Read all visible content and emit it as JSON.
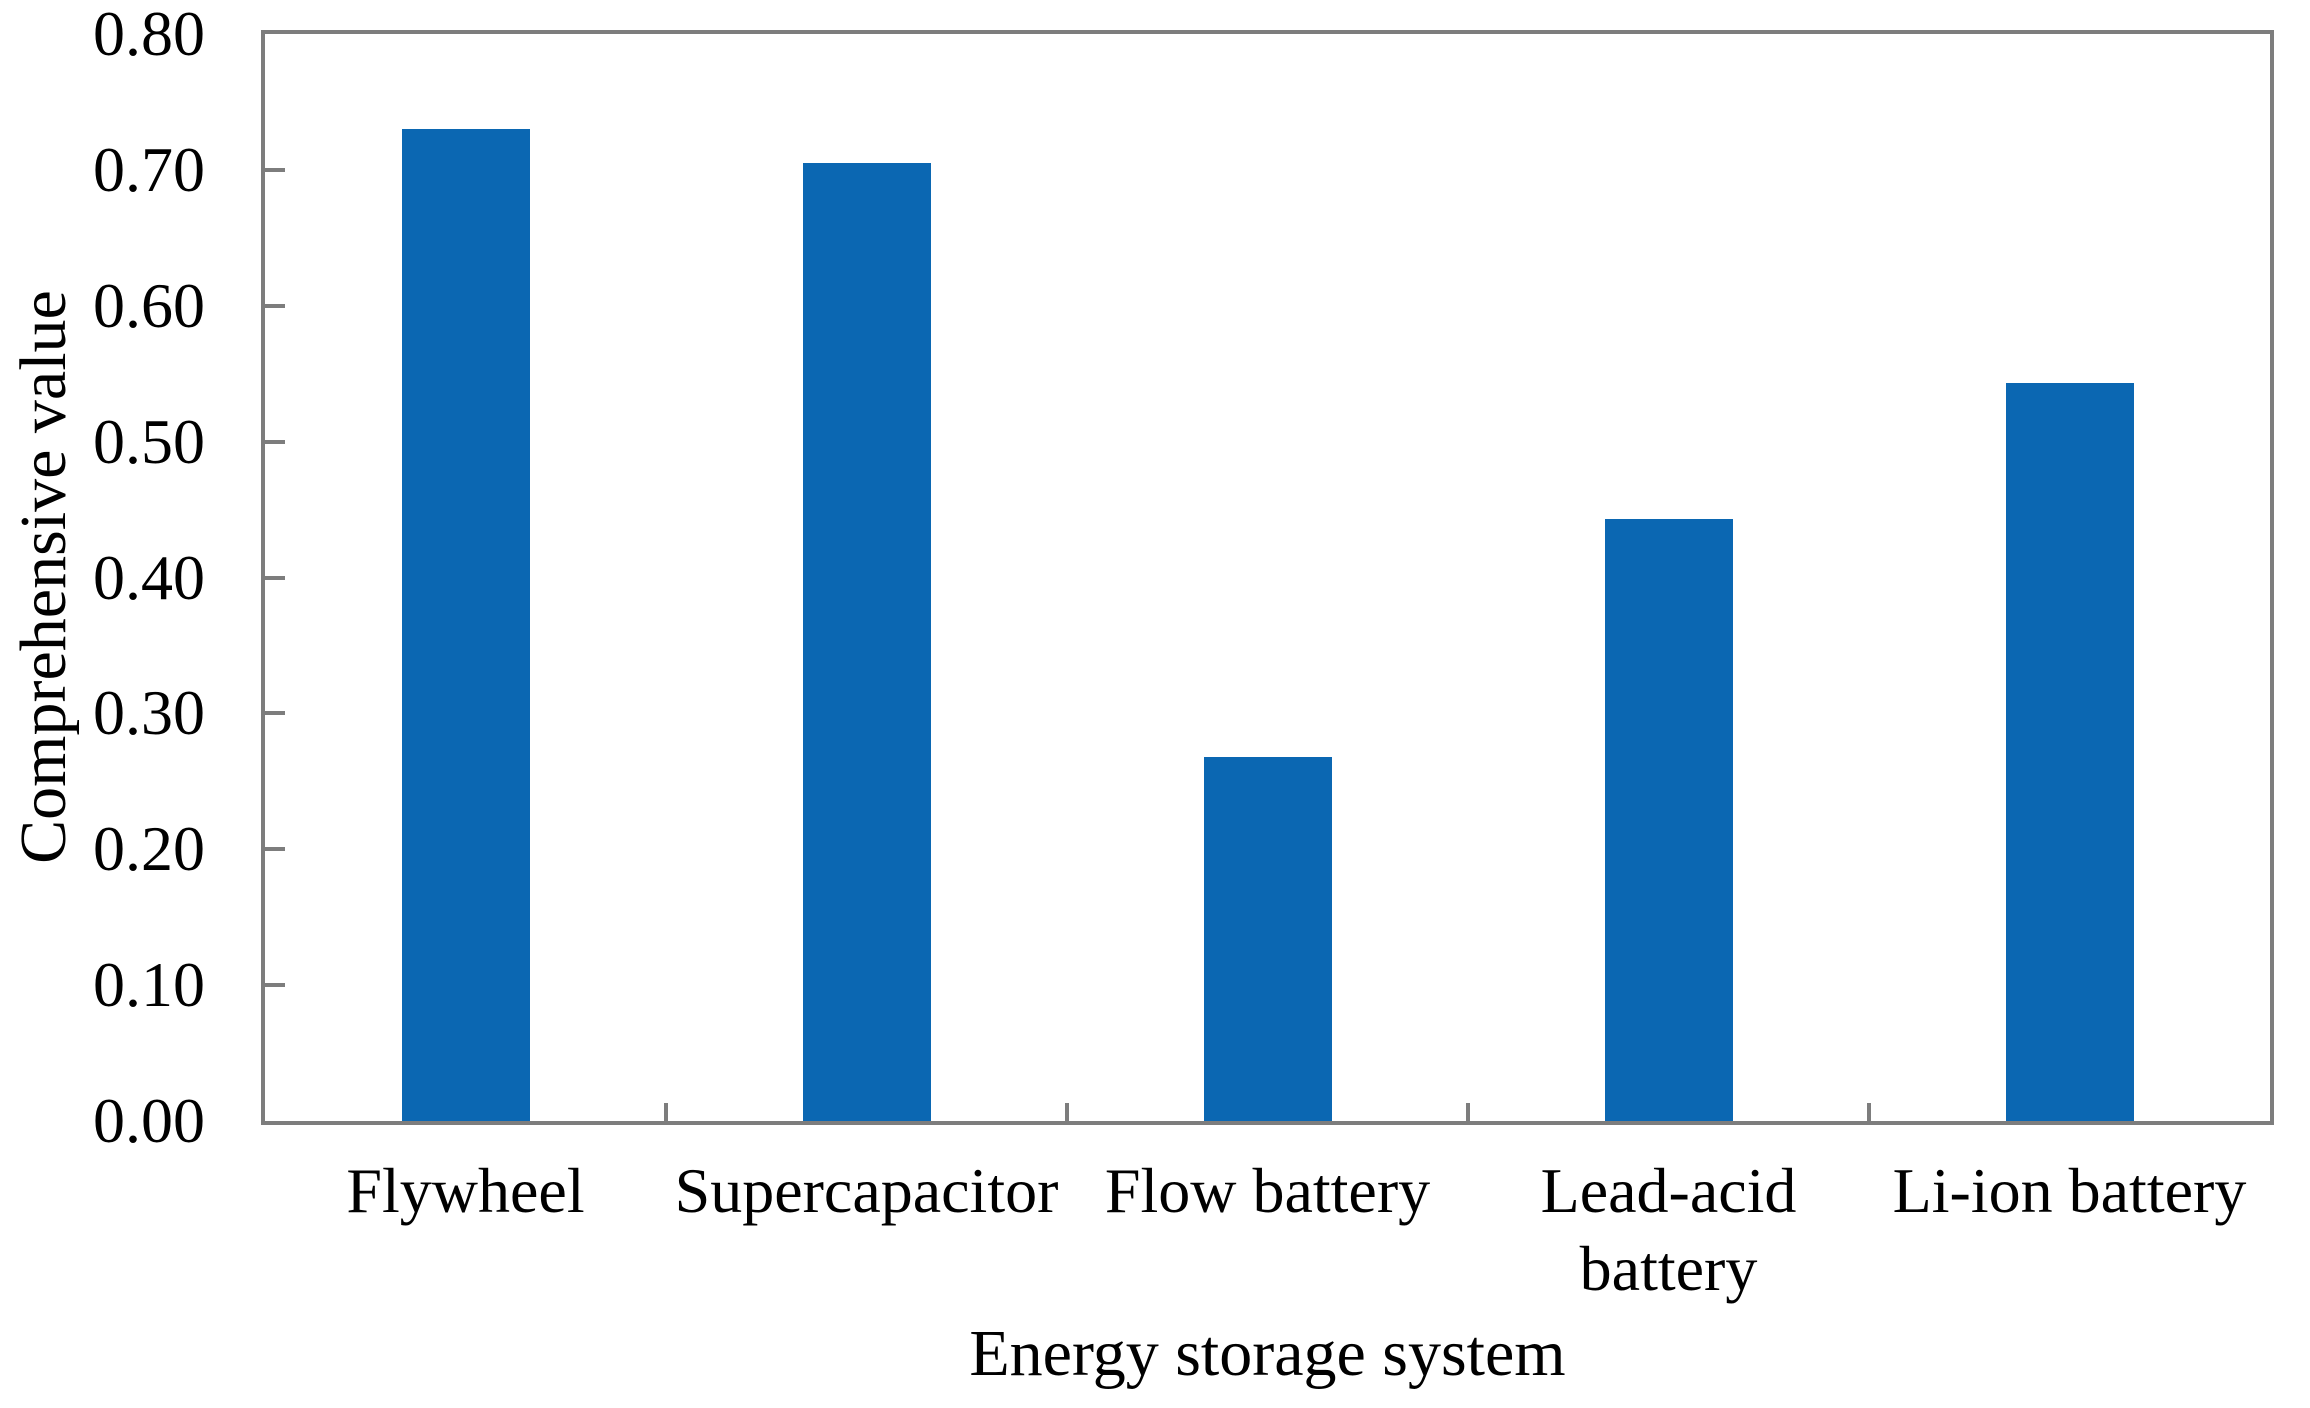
{
  "chart_data": {
    "type": "bar",
    "title": "",
    "xlabel": "Energy storage system",
    "ylabel": "Comprehensive value",
    "categories": [
      "Flywheel",
      "Supercapacitor",
      "Flow battery",
      "Lead-acid battery",
      "Li-ion battery"
    ],
    "category_label_lines": [
      [
        "Flywheel"
      ],
      [
        "Supercapacitor"
      ],
      [
        "Flow battery"
      ],
      [
        "Lead-acid",
        "battery"
      ],
      [
        "Li-ion battery"
      ]
    ],
    "values": [
      0.73,
      0.705,
      0.268,
      0.443,
      0.543
    ],
    "ylim": [
      0.0,
      0.8
    ],
    "ytick_step": 0.1,
    "ytick_labels": [
      "0.00",
      "0.10",
      "0.20",
      "0.30",
      "0.40",
      "0.50",
      "0.60",
      "0.70",
      "0.80"
    ],
    "grid": "off",
    "legend": "none",
    "bar_color": "#0b67b2",
    "axis_color": "#7d7d7d",
    "text_color": "#000000"
  }
}
